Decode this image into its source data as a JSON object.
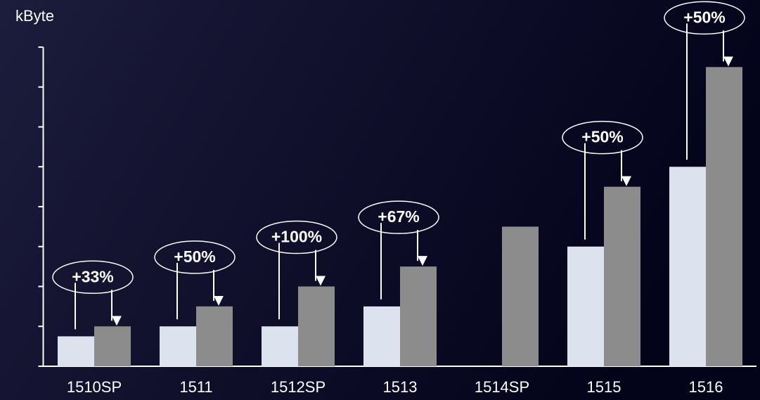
{
  "chart_data": {
    "type": "bar",
    "y_label": "kByte",
    "categories": [
      "1510SP",
      "1511",
      "1512SP",
      "1513",
      "1514SP",
      "1515",
      "1516"
    ],
    "series": [
      {
        "color": "#dde3ee",
        "values": [
          0.75,
          1,
          1,
          1.5,
          null,
          3,
          5
        ]
      },
      {
        "color": "#8c8c8c",
        "values": [
          1,
          1.5,
          2,
          2.5,
          3.5,
          4.5,
          7.5
        ]
      }
    ],
    "annotations": [
      "+33%",
      "+50%",
      "+100%",
      "+67%",
      null,
      "+50%",
      "+50%"
    ],
    "ylim": [
      0,
      8
    ],
    "yticks": [
      0,
      1,
      2,
      3,
      4,
      5,
      6,
      7,
      8
    ]
  }
}
